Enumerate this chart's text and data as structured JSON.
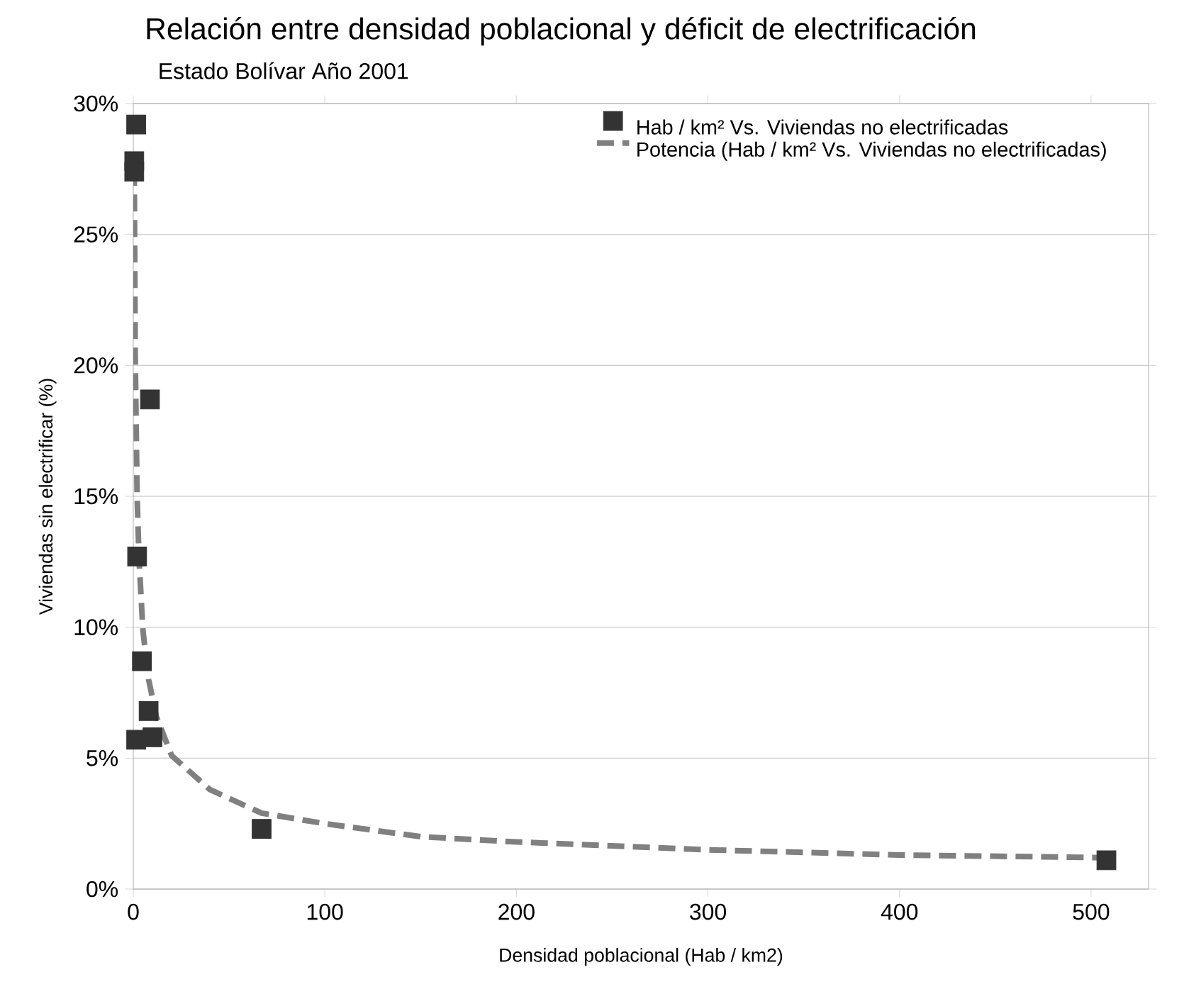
{
  "chart_data": {
    "type": "scatter",
    "title": "Relación entre densidad poblacional y déficit de electrificación",
    "subtitle": "Estado Bolívar Año 2001",
    "xlabel": "Densidad poblacional (Hab / km2)",
    "ylabel": "Viviendas sin electrificar (%)",
    "xlim": [
      0,
      530
    ],
    "xticks": [
      0,
      100,
      200,
      300,
      400,
      500
    ],
    "ylim": [
      0,
      30
    ],
    "yticks": [
      {
        "value": 0,
        "label": "0%"
      },
      {
        "value": 5,
        "label": "5%"
      },
      {
        "value": 10,
        "label": "10%"
      },
      {
        "value": 15,
        "label": "15%"
      },
      {
        "value": 20,
        "label": "20%"
      },
      {
        "value": 25,
        "label": "25%"
      },
      {
        "value": 30,
        "label": "30%"
      }
    ],
    "grid": "y",
    "legend": "top right",
    "series": [
      {
        "name": "Hab / km² Vs. Viviendas no electrificadas",
        "marker": "square",
        "color": "#333333",
        "x": [
          1.5,
          0.5,
          0.5,
          8.7,
          2,
          4.5,
          8,
          10,
          1.5,
          67,
          508
        ],
        "values": [
          29.2,
          27.8,
          27.4,
          18.7,
          12.7,
          8.7,
          6.8,
          5.8,
          5.7,
          2.3,
          1.1
        ]
      },
      {
        "name": "Potencia (Hab / km² Vs. Viviendas no electrificadas)",
        "type": "line",
        "marker": "none",
        "line_style": "dashed",
        "color": "#808080",
        "x": [
          0.5,
          1,
          2,
          3,
          5,
          8,
          12,
          20,
          40,
          67,
          100,
          150,
          200,
          300,
          400,
          508
        ],
        "values": [
          27.5,
          20.4,
          15,
          12.6,
          9.9,
          8,
          6.6,
          5.1,
          3.8,
          2.9,
          2.5,
          2.0,
          1.8,
          1.5,
          1.3,
          1.2
        ]
      }
    ]
  }
}
